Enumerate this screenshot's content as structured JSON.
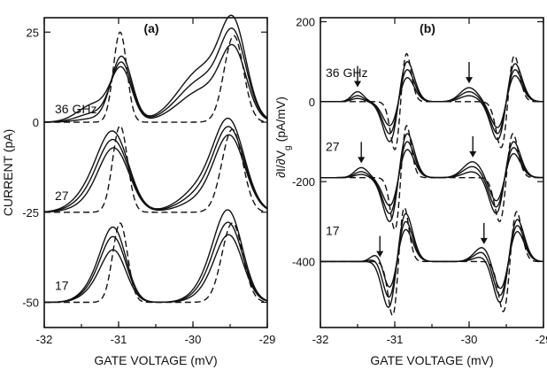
{
  "chart_data": [
    {
      "type": "line",
      "panel_label": "(a)",
      "xlabel": "GATE VOLTAGE  (mV)",
      "ylabel": "CURRENT  (pA)",
      "xlim": [
        -32,
        -29
      ],
      "ylim": [
        -57,
        29
      ],
      "x_ticks": [
        -32,
        -31,
        -30,
        -29
      ],
      "y_ticks": [
        25,
        0,
        -25,
        -50
      ],
      "grid": false,
      "groups": [
        {
          "label": "36 GHz",
          "offset": 0,
          "dashed": {
            "peaks": [
              {
                "x": -30.98,
                "amp": 25.0,
                "w": 0.09
              },
              {
                "x": -29.45,
                "amp": 24.0,
                "w": 0.13
              }
            ]
          },
          "solid": [
            {
              "peaks": [
                {
                  "x": -30.96,
                  "amp": 14.0,
                  "w": 0.14
                },
                {
                  "x": -29.45,
                  "amp": 17.0,
                  "w": 0.17
                },
                {
                  "x": -31.32,
                  "amp": 5.0,
                  "w": 0.22
                },
                {
                  "x": -29.85,
                  "amp": 9.0,
                  "w": 0.33
                }
              ]
            },
            {
              "peaks": [
                {
                  "x": -30.96,
                  "amp": 16.0,
                  "w": 0.14
                },
                {
                  "x": -29.45,
                  "amp": 20.0,
                  "w": 0.17
                },
                {
                  "x": -31.32,
                  "amp": 2.5,
                  "w": 0.22
                },
                {
                  "x": -29.85,
                  "amp": 12.0,
                  "w": 0.33
                }
              ]
            },
            {
              "peaks": [
                {
                  "x": -30.96,
                  "amp": 18.0,
                  "w": 0.14
                },
                {
                  "x": -29.45,
                  "amp": 22.0,
                  "w": 0.17
                },
                {
                  "x": -31.32,
                  "amp": 1.0,
                  "w": 0.22
                },
                {
                  "x": -29.85,
                  "amp": 15.0,
                  "w": 0.33
                }
              ]
            }
          ]
        },
        {
          "label": "27",
          "offset": -25,
          "dashed": {
            "peaks": [
              {
                "x": -30.98,
                "amp": 24.0,
                "w": 0.1
              },
              {
                "x": -29.47,
                "amp": 23.0,
                "w": 0.14
              }
            ]
          },
          "solid": [
            {
              "peaks": [
                {
                  "x": -31.05,
                  "amp": 16.0,
                  "w": 0.2
                },
                {
                  "x": -29.5,
                  "amp": 19.0,
                  "w": 0.2
                },
                {
                  "x": -31.3,
                  "amp": 3.0,
                  "w": 0.25
                },
                {
                  "x": -29.8,
                  "amp": 4.0,
                  "w": 0.3
                }
              ]
            },
            {
              "peaks": [
                {
                  "x": -31.05,
                  "amp": 17.0,
                  "w": 0.2
                },
                {
                  "x": -29.5,
                  "amp": 20.0,
                  "w": 0.2
                },
                {
                  "x": -31.3,
                  "amp": 5.0,
                  "w": 0.25
                },
                {
                  "x": -29.8,
                  "amp": 6.0,
                  "w": 0.3
                }
              ]
            },
            {
              "peaks": [
                {
                  "x": -31.05,
                  "amp": 18.0,
                  "w": 0.2
                },
                {
                  "x": -29.5,
                  "amp": 21.0,
                  "w": 0.2
                },
                {
                  "x": -31.3,
                  "amp": 7.0,
                  "w": 0.25
                },
                {
                  "x": -29.8,
                  "amp": 8.0,
                  "w": 0.3
                }
              ]
            }
          ]
        },
        {
          "label": "17",
          "offset": -50,
          "dashed": {
            "peaks": [
              {
                "x": -30.98,
                "amp": 22.0,
                "w": 0.1
              },
              {
                "x": -29.47,
                "amp": 22.0,
                "w": 0.14
              }
            ]
          },
          "solid": [
            {
              "peaks": [
                {
                  "x": -31.05,
                  "amp": 12.0,
                  "w": 0.16
                },
                {
                  "x": -29.5,
                  "amp": 16.0,
                  "w": 0.18
                },
                {
                  "x": -31.25,
                  "amp": 4.0,
                  "w": 0.2
                },
                {
                  "x": -29.7,
                  "amp": 4.0,
                  "w": 0.22
                }
              ]
            },
            {
              "peaks": [
                {
                  "x": -31.05,
                  "amp": 15.0,
                  "w": 0.16
                },
                {
                  "x": -29.5,
                  "amp": 18.0,
                  "w": 0.18
                },
                {
                  "x": -31.25,
                  "amp": 5.0,
                  "w": 0.2
                },
                {
                  "x": -29.7,
                  "amp": 6.0,
                  "w": 0.22
                }
              ]
            },
            {
              "peaks": [
                {
                  "x": -31.05,
                  "amp": 17.0,
                  "w": 0.16
                },
                {
                  "x": -29.5,
                  "amp": 20.0,
                  "w": 0.18
                },
                {
                  "x": -31.25,
                  "amp": 6.0,
                  "w": 0.2
                },
                {
                  "x": -29.7,
                  "amp": 8.0,
                  "w": 0.22
                }
              ]
            }
          ]
        }
      ]
    },
    {
      "type": "line",
      "panel_label": "(b)",
      "xlabel": "GATE VOLTAGE  (mV)",
      "ylabel": "∂I/∂V",
      "ylabel_sub": "g",
      "ylabel_units": "(pA/mV)",
      "xlim": [
        -32,
        -29
      ],
      "ylim": [
        -565,
        210
      ],
      "x_ticks": [
        -32,
        -31,
        -30,
        -29
      ],
      "y_ticks": [
        200,
        0,
        -200,
        -400
      ],
      "grid": false,
      "groups": [
        {
          "label": "36 GHz",
          "offset": 0,
          "arrows_x": [
            -31.5,
            -30.0
          ],
          "dashed": {
            "feats": [
              {
                "x": -30.92,
                "a": 120,
                "w": 0.08
              },
              {
                "x": -29.48,
                "a": 115,
                "w": 0.09
              }
            ]
          },
          "solid": [
            {
              "feats": [
                {
                  "x": -30.95,
                  "a": 60,
                  "w": 0.12
                },
                {
                  "x": -29.5,
                  "a": 65,
                  "w": 0.12
                }
              ],
              "bumps": [
                {
                  "x": -31.5,
                  "a": 25,
                  "w": 0.08
                },
                {
                  "x": -30.0,
                  "a": 35,
                  "w": 0.12
                }
              ]
            },
            {
              "feats": [
                {
                  "x": -30.95,
                  "a": 80,
                  "w": 0.12
                },
                {
                  "x": -29.5,
                  "a": 80,
                  "w": 0.12
                }
              ],
              "bumps": [
                {
                  "x": -31.5,
                  "a": 15,
                  "w": 0.08
                },
                {
                  "x": -30.0,
                  "a": 25,
                  "w": 0.12
                }
              ]
            },
            {
              "feats": [
                {
                  "x": -30.95,
                  "a": 100,
                  "w": 0.12
                },
                {
                  "x": -29.5,
                  "a": 95,
                  "w": 0.12
                }
              ],
              "bumps": [
                {
                  "x": -31.5,
                  "a": 8,
                  "w": 0.08
                },
                {
                  "x": -30.0,
                  "a": 15,
                  "w": 0.12
                }
              ]
            }
          ]
        },
        {
          "label": "27",
          "offset": -190,
          "arrows_x": [
            -31.45,
            -29.95
          ],
          "dashed": {
            "feats": [
              {
                "x": -30.92,
                "a": 130,
                "w": 0.08
              },
              {
                "x": -29.5,
                "a": 110,
                "w": 0.09
              }
            ]
          },
          "solid": [
            {
              "feats": [
                {
                  "x": -30.95,
                  "a": 70,
                  "w": 0.12
                },
                {
                  "x": -29.52,
                  "a": 60,
                  "w": 0.12
                }
              ],
              "bumps": [
                {
                  "x": -31.45,
                  "a": 25,
                  "w": 0.09
                },
                {
                  "x": -29.95,
                  "a": 40,
                  "w": 0.13
                }
              ]
            },
            {
              "feats": [
                {
                  "x": -30.95,
                  "a": 90,
                  "w": 0.12
                },
                {
                  "x": -29.52,
                  "a": 75,
                  "w": 0.12
                }
              ],
              "bumps": [
                {
                  "x": -31.45,
                  "a": 15,
                  "w": 0.09
                },
                {
                  "x": -29.95,
                  "a": 28,
                  "w": 0.13
                }
              ]
            },
            {
              "feats": [
                {
                  "x": -30.95,
                  "a": 110,
                  "w": 0.12
                },
                {
                  "x": -29.52,
                  "a": 90,
                  "w": 0.12
                }
              ],
              "bumps": [
                {
                  "x": -31.45,
                  "a": 8,
                  "w": 0.09
                },
                {
                  "x": -29.95,
                  "a": 15,
                  "w": 0.13
                }
              ]
            }
          ]
        },
        {
          "label": "17",
          "offset": -400,
          "arrows_x": [
            -31.2,
            -29.8
          ],
          "dashed": {
            "feats": [
              {
                "x": -30.95,
                "a": 135,
                "w": 0.08
              },
              {
                "x": -29.45,
                "a": 125,
                "w": 0.09
              }
            ]
          },
          "solid": [
            {
              "feats": [
                {
                  "x": -30.97,
                  "a": 80,
                  "w": 0.12
                },
                {
                  "x": -29.47,
                  "a": 75,
                  "w": 0.12
                }
              ],
              "bumps": [
                {
                  "x": -31.2,
                  "a": 40,
                  "w": 0.09
                },
                {
                  "x": -29.8,
                  "a": 40,
                  "w": 0.12
                }
              ]
            },
            {
              "feats": [
                {
                  "x": -30.97,
                  "a": 100,
                  "w": 0.12
                },
                {
                  "x": -29.47,
                  "a": 90,
                  "w": 0.12
                }
              ],
              "bumps": [
                {
                  "x": -31.2,
                  "a": 25,
                  "w": 0.09
                },
                {
                  "x": -29.8,
                  "a": 28,
                  "w": 0.12
                }
              ]
            },
            {
              "feats": [
                {
                  "x": -30.97,
                  "a": 120,
                  "w": 0.12
                },
                {
                  "x": -29.47,
                  "a": 105,
                  "w": 0.12
                }
              ],
              "bumps": [
                {
                  "x": -31.2,
                  "a": 12,
                  "w": 0.09
                },
                {
                  "x": -29.8,
                  "a": 15,
                  "w": 0.12
                }
              ]
            }
          ]
        }
      ]
    }
  ]
}
